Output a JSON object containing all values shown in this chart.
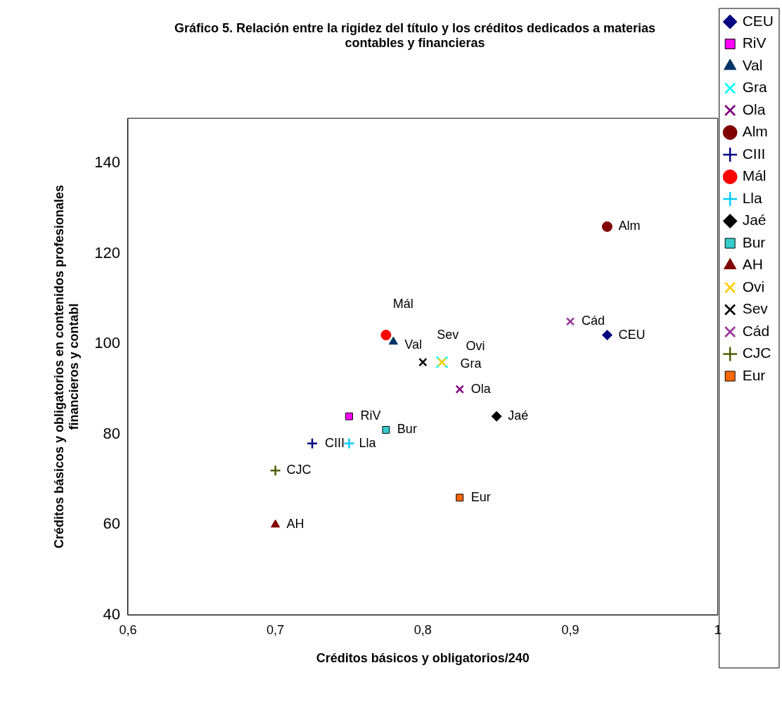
{
  "chart_data": {
    "type": "scatter",
    "title": "Gráfico 5. Relación entre la rigidez del título y los créditos dedicados a materias\ncontables y financieras",
    "xlabel": "Créditos básicos y obligatorios/240",
    "ylabel": "Créditos básicos y obligatorios en contenidos profesionales\nfinancieros y contabl",
    "xlim": [
      0.6,
      1
    ],
    "xticks": [
      {
        "value": 0.6,
        "label": "0,6"
      },
      {
        "value": 0.7,
        "label": "0,7"
      },
      {
        "value": 0.8,
        "label": "0,8"
      },
      {
        "value": 0.9,
        "label": "0,9"
      },
      1
    ],
    "ylim": [
      40,
      150
    ],
    "yticks": [
      40,
      60,
      80,
      100,
      120,
      140
    ],
    "grid": false,
    "legend": "right",
    "series": [
      {
        "name": "CEU",
        "color": "#000080",
        "marker": "diamond",
        "x": [
          0.925
        ],
        "values": [
          102
        ]
      },
      {
        "name": "RiV",
        "color": "#ff00ff",
        "marker": "square",
        "x": [
          0.75
        ],
        "values": [
          84
        ]
      },
      {
        "name": "Val",
        "color": "#003366",
        "marker": "triangle",
        "x": [
          0.78
        ],
        "values": [
          100.5
        ]
      },
      {
        "name": "Gra",
        "color": "#00ffff",
        "marker": "x",
        "x": [
          0.813
        ],
        "values": [
          96
        ]
      },
      {
        "name": "Ola",
        "color": "#800080",
        "marker": "x",
        "x": [
          0.825
        ],
        "values": [
          90
        ]
      },
      {
        "name": "Alm",
        "color": "#800000",
        "marker": "circle",
        "x": [
          0.925
        ],
        "values": [
          126
        ]
      },
      {
        "name": "CIII",
        "color": "#000080",
        "marker": "cross",
        "x": [
          0.725
        ],
        "values": [
          78
        ]
      },
      {
        "name": "Mál",
        "color": "#ff0000",
        "marker": "circle",
        "x": [
          0.775
        ],
        "values": [
          102
        ]
      },
      {
        "name": "Lla",
        "color": "#00ccff",
        "marker": "cross",
        "x": [
          0.75
        ],
        "values": [
          78
        ]
      },
      {
        "name": "Jaé",
        "color": "#000000",
        "marker": "diamond",
        "x": [
          0.85
        ],
        "values": [
          84
        ]
      },
      {
        "name": "Bur",
        "color": "#33cccc",
        "marker": "square",
        "x": [
          0.775
        ],
        "values": [
          81
        ]
      },
      {
        "name": "AH",
        "color": "#800000",
        "marker": "triangle",
        "x": [
          0.7
        ],
        "values": [
          60
        ]
      },
      {
        "name": "Ovi",
        "color": "#ffcc00",
        "marker": "x",
        "x": [
          0.813
        ],
        "values": [
          96
        ]
      },
      {
        "name": "Sev",
        "color": "#000000",
        "marker": "x",
        "x": [
          0.8
        ],
        "values": [
          96
        ]
      },
      {
        "name": "Cád",
        "color": "#993399",
        "marker": "x",
        "x": [
          0.9
        ],
        "values": [
          105
        ]
      },
      {
        "name": "CJC",
        "color": "#4d5e00",
        "marker": "cross",
        "x": [
          0.7
        ],
        "values": [
          72
        ]
      },
      {
        "name": "Eur",
        "color": "#ff6600",
        "marker": "square",
        "x": [
          0.825
        ],
        "values": [
          66
        ]
      }
    ]
  }
}
